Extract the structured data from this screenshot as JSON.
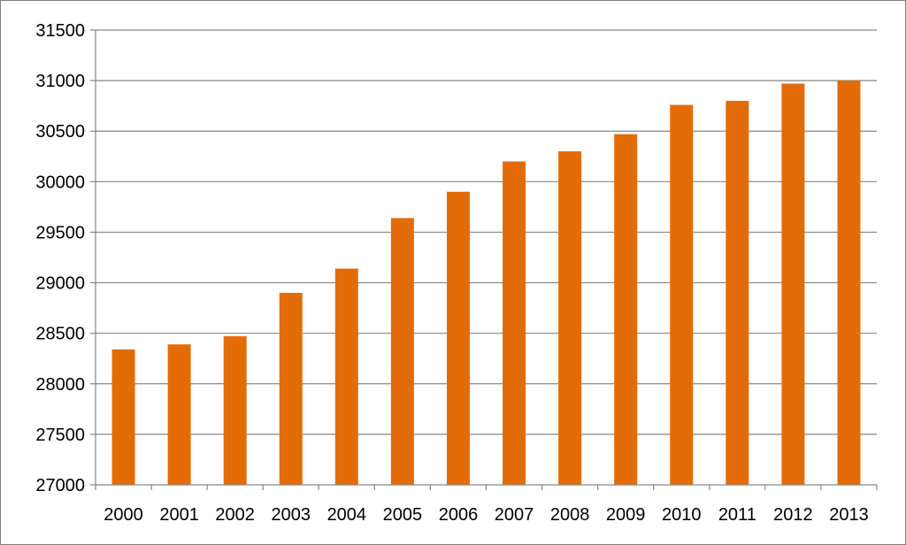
{
  "chart_data": {
    "type": "bar",
    "title": "",
    "xlabel": "",
    "ylabel": "",
    "categories": [
      "2000",
      "2001",
      "2002",
      "2003",
      "2004",
      "2005",
      "2006",
      "2007",
      "2008",
      "2009",
      "2010",
      "2011",
      "2012",
      "2013"
    ],
    "series": [
      {
        "values": [
          28340,
          28390,
          28470,
          28900,
          29140,
          29640,
          29900,
          30200,
          30300,
          30470,
          30760,
          30800,
          30970,
          31000
        ]
      }
    ],
    "ylim": [
      27000,
      31500
    ],
    "yticks": [
      "27000",
      "27500",
      "28000",
      "28500",
      "29000",
      "29500",
      "30000",
      "30500",
      "31000",
      "31500"
    ],
    "grid": true,
    "legend": "none",
    "colors": {
      "bar": "#e36c09",
      "grid": "#868686",
      "axis": "#868686",
      "frame": "#7f7f7f"
    }
  }
}
